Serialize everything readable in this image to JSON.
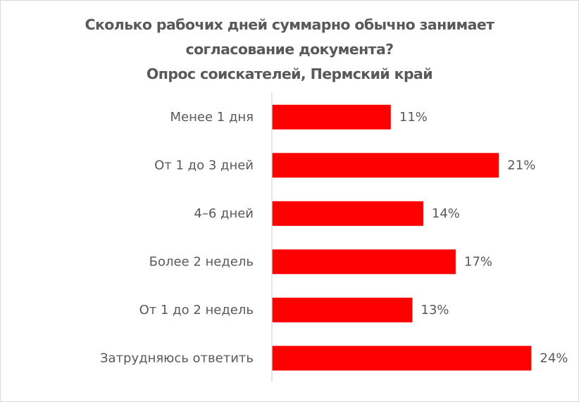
{
  "chart_data": {
    "type": "bar",
    "orientation": "horizontal",
    "title_lines": [
      "Сколько рабочих дней суммарно обычно занимает",
      "согласование документа?",
      "Опрос соискателей, Пермский край"
    ],
    "categories": [
      "Менее 1 дня",
      "От 1 до 3 дней",
      "4–6 дней",
      "Более 2 недель",
      "От 1 до 2 недель",
      "Затрудняюсь ответить"
    ],
    "values": [
      11,
      21,
      14,
      17,
      13,
      24
    ],
    "data_labels": [
      "11%",
      "21%",
      "14%",
      "17%",
      "13%",
      "24%"
    ],
    "unit": "%",
    "xlim": [
      0,
      24
    ],
    "bar_color": "#ff0000",
    "text_color": "#595959",
    "axis_color": "#d9d9d9",
    "legend": "none",
    "grid": false
  }
}
